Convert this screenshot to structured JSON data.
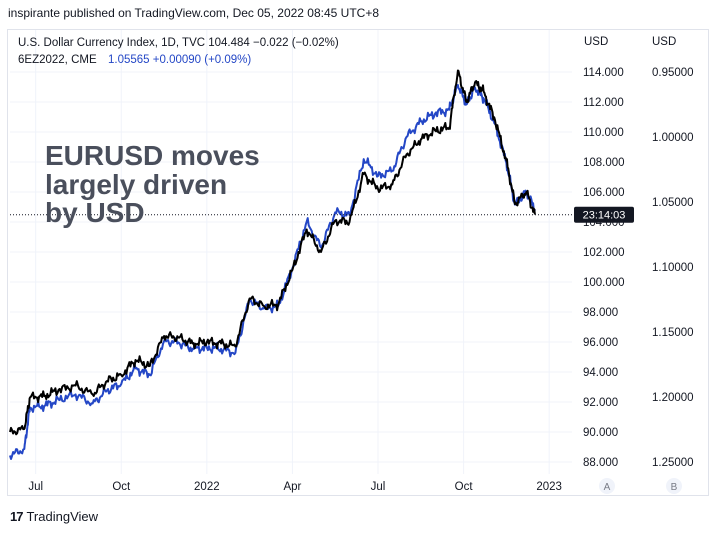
{
  "header": {
    "published": "inspirante published on TradingView.com, Dec 05, 2022 08:45 UTC+8"
  },
  "footer": {
    "brand": "TradingView",
    "logo_text": "17"
  },
  "legend": {
    "line1": "U.S. Dollar Currency Index, 1D, TVC  104.484  −0.022 (−0.02%)",
    "line2_name": "6EZ2022, CME",
    "line2_values": "1.05565  +0.00090 (+0.09%)"
  },
  "annotation": [
    "EURUSD moves",
    "largely driven",
    "by USD"
  ],
  "axis_headers": {
    "a": "USD",
    "b": "USD"
  },
  "scale_buttons": {
    "a": "A",
    "b": "B"
  },
  "countdown_label": "23:14:03",
  "colors": {
    "dxy": "#000000",
    "eur": "#2447c6",
    "annotation": "#4a4f5c",
    "grid": "#f0f3fa"
  },
  "chart_data": {
    "type": "line",
    "x_ticks": [
      "Jul",
      "Oct",
      "2022",
      "Apr",
      "Jul",
      "Oct",
      "2023"
    ],
    "x_tick_positions": [
      0.5,
      3.5,
      6.5,
      9.5,
      12.5,
      15.5,
      18.5
    ],
    "x_range": [
      -0.4,
      19.3
    ],
    "y_left": {
      "ticks": [
        "114.000",
        "112.000",
        "110.000",
        "108.000",
        "106.000",
        "104.000",
        "102.000",
        "100.000",
        "98.000",
        "96.000",
        "94.000",
        "92.000",
        "90.000",
        "88.000"
      ],
      "range": [
        88,
        114
      ]
    },
    "y_right": {
      "ticks": [
        "0.95000",
        "1.00000",
        "1.05000",
        "1.10000",
        "1.15000",
        "1.20000",
        "1.25000"
      ],
      "range": [
        0.95,
        1.25
      ],
      "inverted": true
    },
    "series": [
      {
        "name": "U.S. Dollar Currency Index",
        "axis": "left",
        "x": [
          -0.4,
          0.1,
          0.3,
          0.8,
          1.3,
          1.9,
          2.5,
          3.0,
          3.5,
          4.0,
          4.5,
          5.0,
          5.5,
          6.0,
          6.5,
          7.0,
          7.5,
          8.0,
          8.5,
          9.0,
          9.5,
          10.0,
          10.5,
          11.0,
          11.5,
          12.0,
          12.5,
          13.0,
          13.5,
          14.0,
          14.5,
          15.0,
          15.3,
          15.6,
          15.9,
          16.2,
          16.6,
          17.0,
          17.3,
          17.7,
          18.0
        ],
        "y": [
          90.0,
          90.2,
          92.3,
          92.4,
          92.8,
          93.1,
          92.5,
          93.4,
          93.8,
          94.8,
          94.4,
          96.4,
          96.3,
          95.9,
          96.0,
          95.9,
          95.7,
          98.9,
          98.4,
          98.5,
          100.8,
          103.5,
          102.0,
          104.1,
          104.0,
          107.2,
          106.2,
          106.5,
          108.5,
          109.5,
          110.1,
          110.3,
          114.1,
          112.0,
          113.3,
          112.7,
          110.8,
          108.1,
          105.2,
          106.0,
          104.5
        ]
      },
      {
        "name": "6EZ2022, CME",
        "axis": "right",
        "x": [
          -0.4,
          0.1,
          0.3,
          0.8,
          1.3,
          1.9,
          2.5,
          3.0,
          3.5,
          4.0,
          4.5,
          5.0,
          5.5,
          6.0,
          6.5,
          7.0,
          7.5,
          8.0,
          8.5,
          9.0,
          9.5,
          10.0,
          10.5,
          11.0,
          11.5,
          12.0,
          12.5,
          13.0,
          13.5,
          14.0,
          14.5,
          15.0,
          15.3,
          15.6,
          15.9,
          16.2,
          16.6,
          17.0,
          17.3,
          17.7,
          18.0
        ],
        "y": [
          1.245,
          1.24,
          1.208,
          1.207,
          1.202,
          1.198,
          1.205,
          1.195,
          1.19,
          1.178,
          1.183,
          1.157,
          1.158,
          1.163,
          1.162,
          1.163,
          1.166,
          1.125,
          1.132,
          1.13,
          1.101,
          1.065,
          1.085,
          1.058,
          1.06,
          1.017,
          1.03,
          1.026,
          1.0,
          0.988,
          0.982,
          0.979,
          0.96,
          0.975,
          0.962,
          0.97,
          0.99,
          1.02,
          1.052,
          1.042,
          1.05565
        ]
      }
    ],
    "last_value_left": 104.484,
    "grid": true,
    "legend_position": "top-left"
  }
}
